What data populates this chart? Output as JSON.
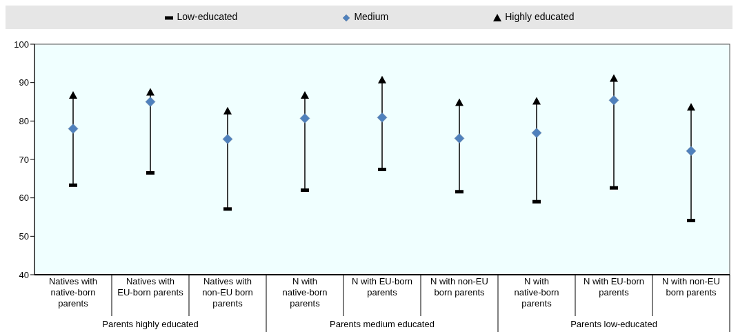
{
  "chart_data": {
    "type": "scatter",
    "categories": [
      "Natives with native-born parents",
      "Natives with EU-born parents",
      "Natives with non-EU born parents",
      "N with native-born parents",
      "N with EU-born parents",
      "N with non-EU born parents",
      "N with native-born parents",
      "N with EU-born parents",
      "N with non-EU born parents"
    ],
    "series": [
      {
        "name": "Low-educated",
        "color": "#000000",
        "values": [
          63.3,
          66.5,
          57.1,
          62.0,
          67.4,
          61.6,
          59.0,
          62.6,
          54.1
        ]
      },
      {
        "name": "Medium",
        "color": "#4f81bd",
        "marker": "diamond",
        "values": [
          78.0,
          85.0,
          75.3,
          80.7,
          80.9,
          75.5,
          76.9,
          85.4,
          72.2
        ]
      },
      {
        "name": "Highly educated",
        "color": "#000000",
        "marker": "triangle",
        "values": [
          86.7,
          87.5,
          82.6,
          86.7,
          90.7,
          84.8,
          85.2,
          91.1,
          83.6
        ]
      }
    ],
    "ylim": [
      40,
      100
    ],
    "yticks": [
      40,
      50,
      60,
      70,
      80,
      90,
      100
    ],
    "legend": "top",
    "annotations": [
      "Parents highly educated",
      "Parents medium educated",
      "Parents low-educated"
    ]
  }
}
